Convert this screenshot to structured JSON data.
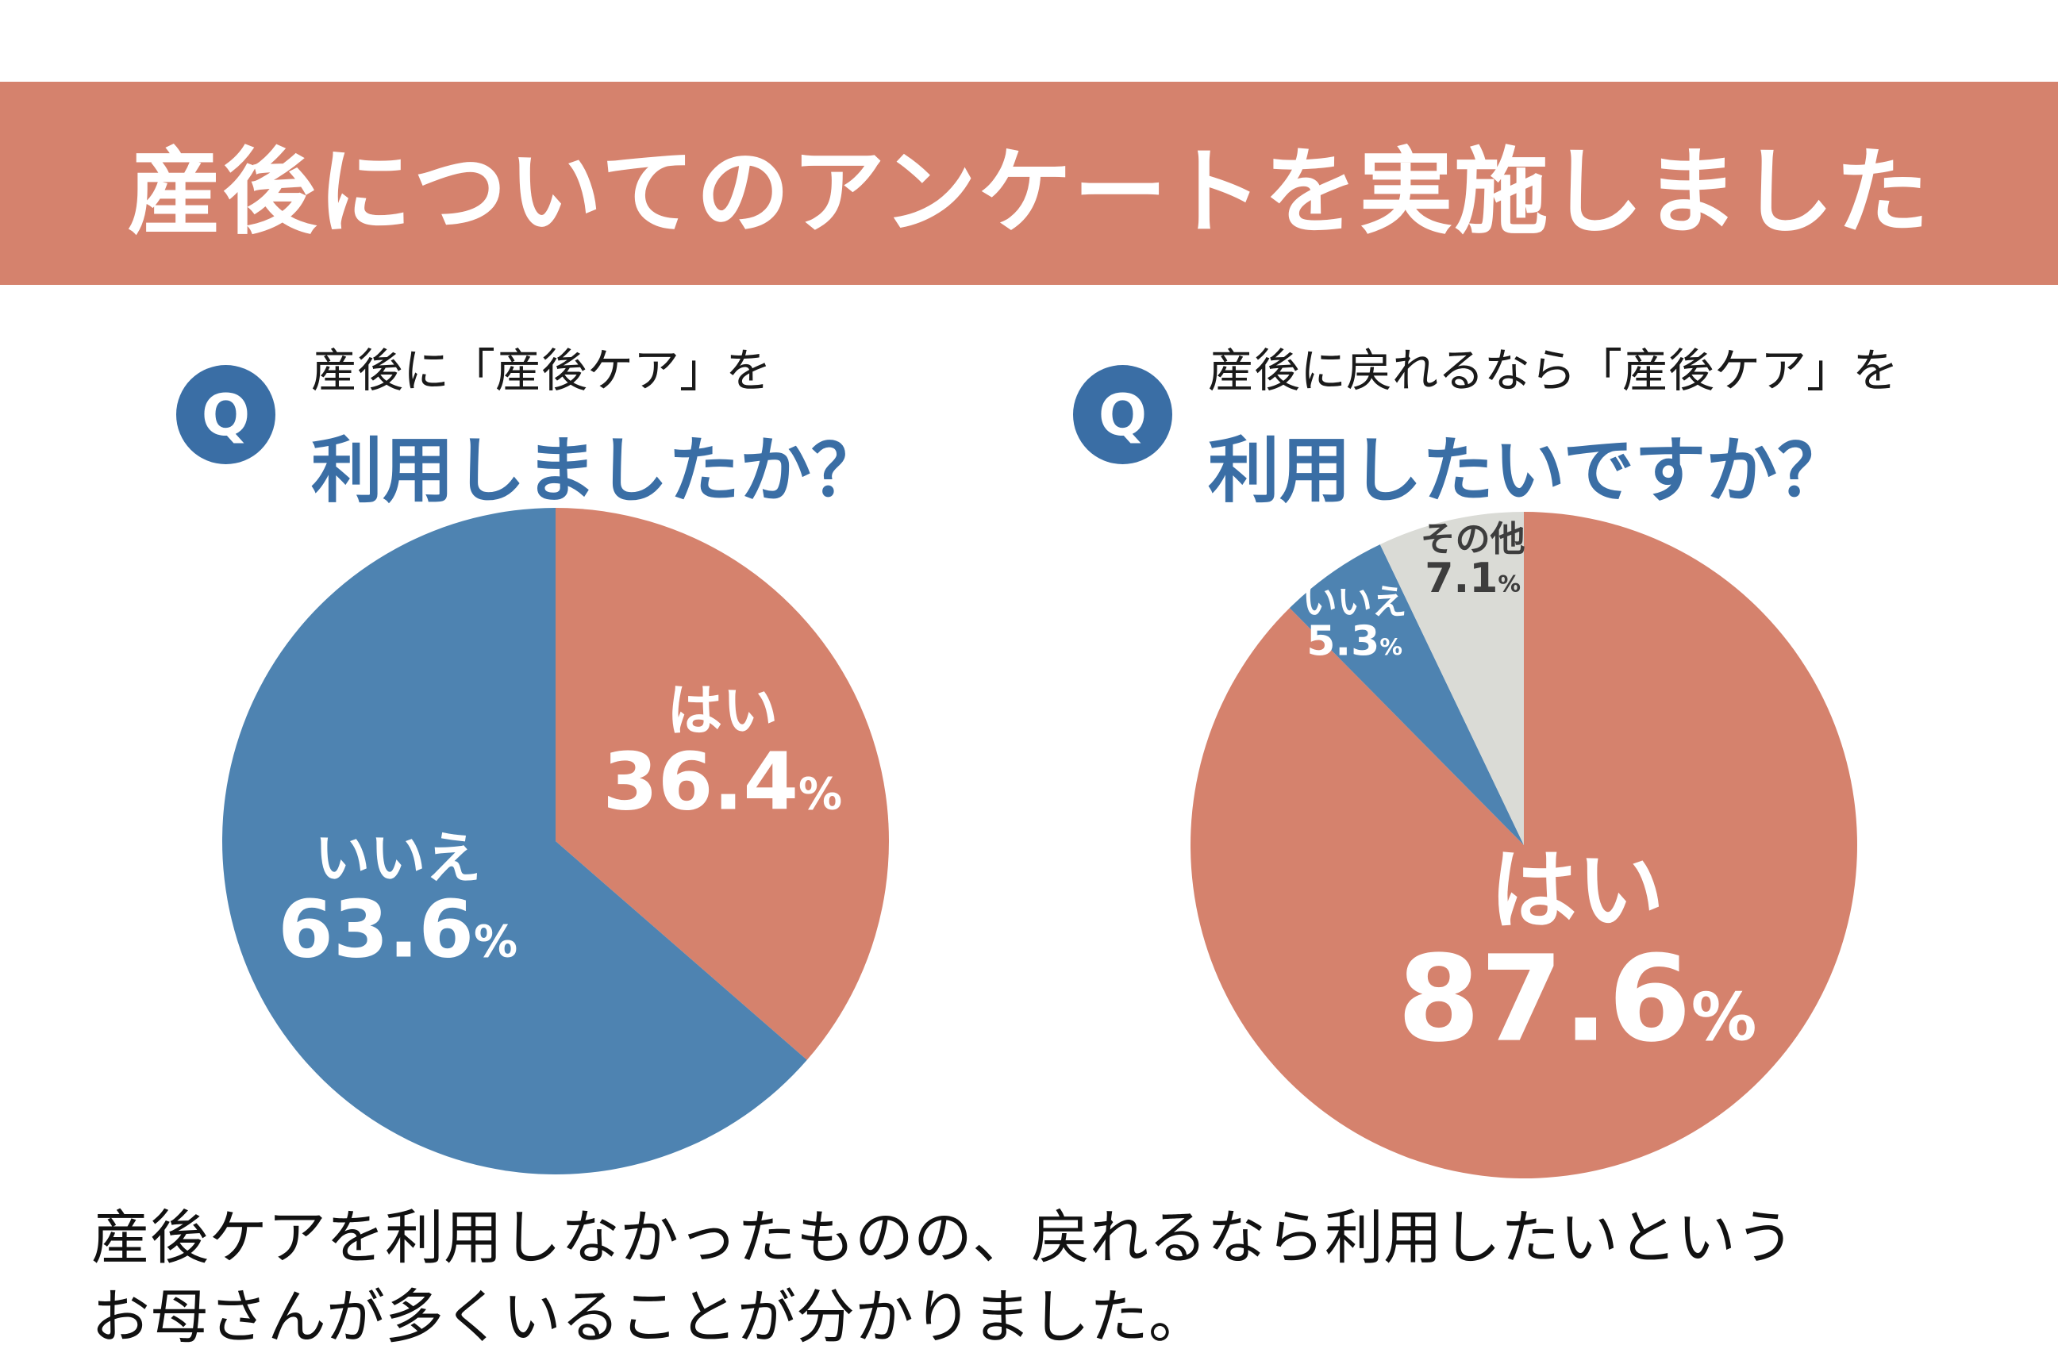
{
  "header": {
    "title": "産後についてのアンケートを実施しました"
  },
  "questions": [
    {
      "badge": "Q",
      "line1": "産後に「産後ケア」を",
      "line2": "利用しましたか？"
    },
    {
      "badge": "Q",
      "line1": "産後に戻れるなら「産後ケア」を",
      "line2": "利用したいですか？"
    }
  ],
  "chart_data": [
    {
      "type": "pie",
      "title": "産後に「産後ケア」を利用しましたか？",
      "slices": [
        {
          "label": "はい",
          "value": 36.4,
          "display": "36.4",
          "color": "#D5826D",
          "text_color": "#ffffff"
        },
        {
          "label": "いいえ",
          "value": 63.6,
          "display": "63.6",
          "color": "#4E83B1",
          "text_color": "#ffffff"
        }
      ],
      "unit": "%",
      "start": "12 o'clock, clockwise"
    },
    {
      "type": "pie",
      "title": "産後に戻れるなら「産後ケア」を利用したいですか？",
      "slices": [
        {
          "label": "はい",
          "value": 87.6,
          "display": "87.6",
          "color": "#D5826D",
          "text_color": "#ffffff"
        },
        {
          "label": "いいえ",
          "value": 5.3,
          "display": "5.3",
          "color": "#4E83B1",
          "text_color": "#ffffff"
        },
        {
          "label": "その他",
          "value": 7.1,
          "display": "7.1",
          "color": "#DADBD6",
          "text_color": "#3d3d3d"
        }
      ],
      "unit": "%",
      "start": "12 o'clock, clockwise"
    }
  ],
  "footer": {
    "line1": "産後ケアを利用しなかったものの、戻れるなら利用したいという",
    "line2": "お母さんが多くいることが分かりました。"
  }
}
